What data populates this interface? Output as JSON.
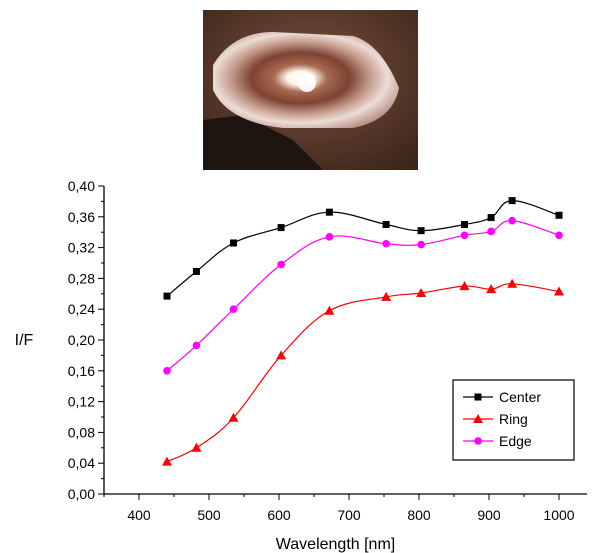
{
  "photo": {
    "description_icon": "sample-photo"
  },
  "chart_data": {
    "type": "line",
    "xlabel": "Wavelength [nm]",
    "ylabel": "I/F",
    "xlim": [
      350,
      1040
    ],
    "ylim": [
      0.0,
      0.4
    ],
    "xticks": [
      400,
      500,
      600,
      700,
      800,
      900,
      1000
    ],
    "xtick_labels": [
      "400",
      "500",
      "600",
      "700",
      "800",
      "900",
      "1000"
    ],
    "yticks": [
      0.0,
      0.04,
      0.08,
      0.12,
      0.16,
      0.2,
      0.24,
      0.28,
      0.32,
      0.36,
      0.4
    ],
    "ytick_labels": [
      "0,00",
      "0,04",
      "0,08",
      "0,12",
      "0,16",
      "0,20",
      "0,24",
      "0,28",
      "0,32",
      "0,36",
      "0,40"
    ],
    "x": [
      440,
      482,
      535,
      603,
      672,
      753,
      803,
      865,
      903,
      933,
      1000
    ],
    "series": [
      {
        "name": "Center",
        "color": "#000000",
        "marker": "square",
        "values": [
          0.257,
          0.289,
          0.326,
          0.346,
          0.366,
          0.35,
          0.342,
          0.35,
          0.359,
          0.381,
          0.362
        ]
      },
      {
        "name": "Ring",
        "color": "#ff0000",
        "marker": "triangle",
        "values": [
          0.042,
          0.06,
          0.099,
          0.18,
          0.238,
          0.256,
          0.261,
          0.27,
          0.266,
          0.273,
          0.263
        ]
      },
      {
        "name": "Edge",
        "color": "#ff00ff",
        "marker": "circle",
        "values": [
          0.16,
          0.193,
          0.24,
          0.298,
          0.334,
          0.325,
          0.324,
          0.336,
          0.341,
          0.355,
          0.336
        ]
      }
    ],
    "grid": false,
    "legend_position": "bottom-right"
  }
}
